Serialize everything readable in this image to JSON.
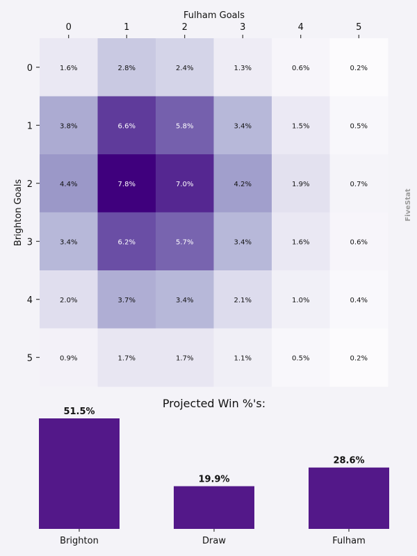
{
  "watermark": "FiveStat",
  "chart_data": [
    {
      "type": "heatmap",
      "xlabel": "Fulham Goals",
      "ylabel": "Brighton Goals",
      "x_categories": [
        "0",
        "1",
        "2",
        "3",
        "4",
        "5"
      ],
      "y_categories": [
        "0",
        "1",
        "2",
        "3",
        "4",
        "5"
      ],
      "values": [
        [
          1.6,
          2.8,
          2.4,
          1.3,
          0.6,
          0.2
        ],
        [
          3.8,
          6.6,
          5.8,
          3.4,
          1.5,
          0.5
        ],
        [
          4.4,
          7.8,
          7.0,
          4.2,
          1.9,
          0.7
        ],
        [
          3.4,
          6.2,
          5.7,
          3.4,
          1.6,
          0.6
        ],
        [
          2.0,
          3.7,
          3.4,
          2.1,
          1.0,
          0.4
        ],
        [
          0.9,
          1.7,
          1.7,
          1.1,
          0.5,
          0.2
        ]
      ],
      "labels": [
        [
          "1.6%",
          "2.8%",
          "2.4%",
          "1.3%",
          "0.6%",
          "0.2%"
        ],
        [
          "3.8%",
          "6.6%",
          "5.8%",
          "3.4%",
          "1.5%",
          "0.5%"
        ],
        [
          "4.4%",
          "7.8%",
          "7.0%",
          "4.2%",
          "1.9%",
          "0.7%"
        ],
        [
          "3.4%",
          "6.2%",
          "5.7%",
          "3.4%",
          "1.6%",
          "0.6%"
        ],
        [
          "2.0%",
          "3.7%",
          "3.4%",
          "2.1%",
          "1.0%",
          "0.4%"
        ],
        [
          "0.9%",
          "1.7%",
          "1.7%",
          "1.1%",
          "0.5%",
          "0.2%"
        ]
      ],
      "value_unit": "%",
      "colormap": "purples",
      "x_axis_position": "top"
    },
    {
      "type": "bar",
      "title": "Projected Win %'s:",
      "categories": [
        "Brighton",
        "Draw",
        "Fulham"
      ],
      "values": [
        51.5,
        19.9,
        28.6
      ],
      "labels": [
        "51.5%",
        "19.9%",
        "28.6%"
      ],
      "color": "#531889",
      "ylim": [
        0,
        51.5
      ]
    }
  ]
}
